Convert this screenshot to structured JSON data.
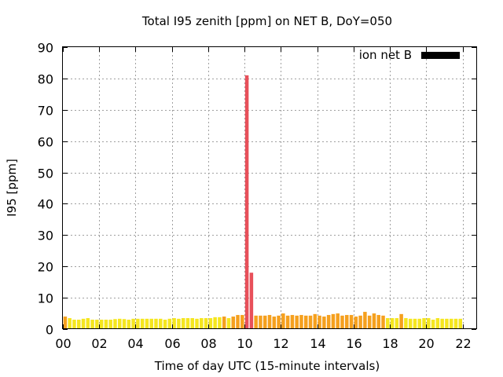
{
  "chart_data": {
    "type": "bar",
    "title": "Total I95 zenith [ppm] on NET B, DoY=050",
    "xlabel": "Time of day UTC (15-minute intervals)",
    "ylabel": "I95 [ppm]",
    "xlim": [
      0,
      22.75
    ],
    "ylim": [
      0,
      90
    ],
    "grid": true,
    "legend": {
      "label": "ion net B",
      "color": "#000000",
      "position": "top-right"
    },
    "xticks": [
      "00",
      "02",
      "04",
      "06",
      "08",
      "10",
      "12",
      "14",
      "16",
      "18",
      "20",
      "22"
    ],
    "yticks": [
      "0",
      "10",
      "20",
      "30",
      "40",
      "50",
      "60",
      "70",
      "80",
      "90"
    ],
    "bar_step_hours": 0.25,
    "values": [
      4.0,
      3.5,
      3.0,
      3.0,
      3.3,
      3.5,
      3.0,
      3.0,
      3.0,
      3.0,
      3.0,
      3.2,
      3.3,
      3.2,
      3.0,
      3.3,
      3.3,
      3.3,
      3.3,
      3.3,
      3.3,
      3.3,
      3.0,
      3.3,
      3.5,
      3.3,
      3.5,
      3.5,
      3.5,
      3.3,
      3.5,
      3.5,
      3.5,
      3.8,
      3.8,
      4.0,
      3.5,
      4.0,
      4.5,
      4.5,
      81.0,
      18.0,
      4.3,
      4.3,
      4.3,
      4.5,
      4.0,
      4.3,
      5.0,
      4.3,
      4.5,
      4.3,
      4.5,
      4.3,
      4.3,
      4.8,
      4.3,
      4.0,
      4.5,
      4.8,
      5.0,
      4.3,
      4.5,
      4.5,
      4.0,
      4.3,
      5.5,
      4.3,
      5.0,
      4.5,
      4.3,
      3.5,
      3.5,
      3.5,
      4.8,
      3.5,
      3.3,
      3.3,
      3.3,
      3.5,
      3.5,
      3.0,
      3.5,
      3.3,
      3.3,
      3.3,
      3.3,
      3.3
    ],
    "colors": {
      "low": "#f5e61e",
      "mid": "#f5a01e",
      "high": "#e8505a",
      "thresholds": [
        4.0,
        10.0
      ]
    }
  }
}
